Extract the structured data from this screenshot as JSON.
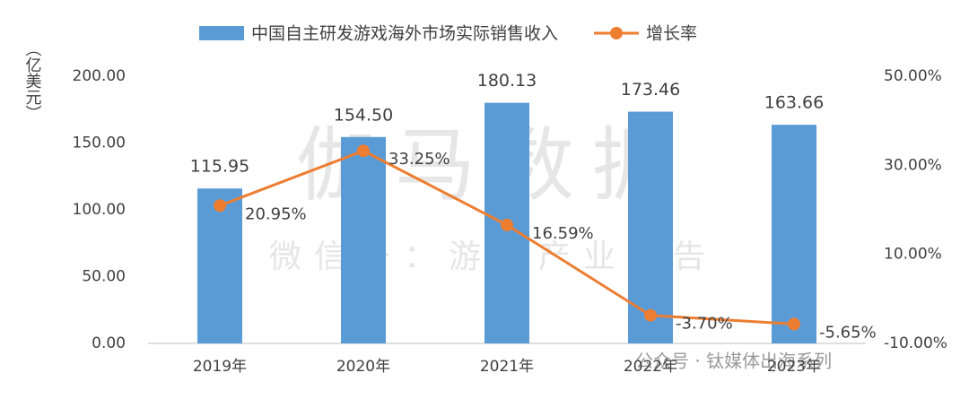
{
  "chart_data": {
    "type": "bar_line",
    "y_axis_label": "（亿美元）",
    "categories": [
      "2019年",
      "2020年",
      "2021年",
      "2022年",
      "2023年"
    ],
    "series": [
      {
        "name": "中国自主研发游戏海外市场实际销售收入",
        "type": "bar",
        "color": "#5b9bd5",
        "values": [
          115.95,
          154.5,
          180.13,
          173.46,
          163.66
        ],
        "value_labels": [
          "115.95",
          "154.50",
          "180.13",
          "173.46",
          "163.66"
        ]
      },
      {
        "name": "增长率",
        "type": "line",
        "axis": "y2",
        "color": "#ed7d31",
        "values": [
          20.95,
          33.25,
          16.59,
          -3.7,
          -5.65
        ],
        "value_labels": [
          "20.95%",
          "33.25%",
          "16.59%",
          "-3.70%",
          "-5.65%"
        ]
      }
    ],
    "ylim": [
      0,
      200
    ],
    "yticks": [
      {
        "value": 0,
        "label": "0.00"
      },
      {
        "value": 50,
        "label": "50.00"
      },
      {
        "value": 100,
        "label": "100.00"
      },
      {
        "value": 150,
        "label": "150.00"
      },
      {
        "value": 200,
        "label": "200.00"
      }
    ],
    "y2lim": [
      -10,
      50
    ],
    "y2ticks": [
      {
        "value": -10,
        "label": "-10.00%"
      },
      {
        "value": 10,
        "label": "10.00%"
      },
      {
        "value": 30,
        "label": "30.00%"
      },
      {
        "value": 50,
        "label": "50.00%"
      }
    ],
    "watermarks": [
      "伽马数据",
      "微信号：游戏产业报告",
      "公众号 · 钛媒体出海系列"
    ]
  }
}
